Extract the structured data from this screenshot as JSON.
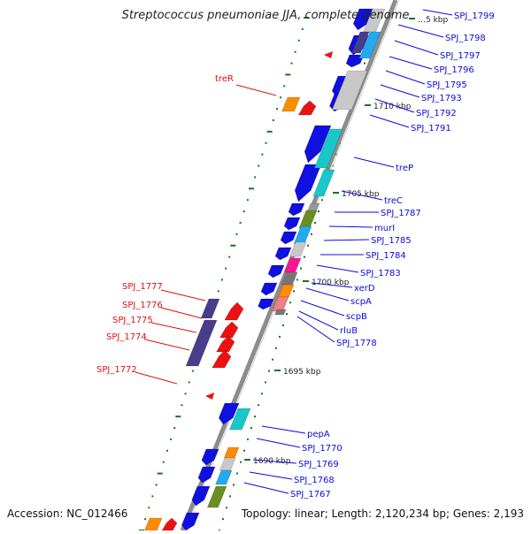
{
  "title": "Streptococcus pneumoniae JJA, complete genome",
  "footer": {
    "accession": "Accession: NC_012466",
    "summary": "Topology: linear; Length: 2,120,234 bp; Genes: 2,193"
  },
  "colors": {
    "backbone": "#8c8c8c",
    "forward_gene": "#1010e0",
    "reverse_gene": "#ee1111",
    "right_label": "#0a0ae0",
    "left_label": "#e01010",
    "tick": "#11771a",
    "cyan": "#18c8c8",
    "light_gray": "#c8c8c8",
    "olive": "#6b8e23",
    "sky": "#22aaee",
    "magenta": "#ff1493",
    "orange": "#ff8c00",
    "slate": "#483d8b",
    "salmon": "#f08080",
    "dark_gray": "#777777"
  },
  "kbp_labels": [
    {
      "text": "…5 kbp"
    },
    {
      "text": "1710 kbp"
    },
    {
      "text": "1705 kbp"
    },
    {
      "text": "1700 kbp"
    },
    {
      "text": "1695 kbp"
    },
    {
      "text": "1690 kbp"
    }
  ],
  "right_genes": [
    {
      "label": "SPJ_1799"
    },
    {
      "label": "SPJ_1798"
    },
    {
      "label": "SPJ_1797"
    },
    {
      "label": "SPJ_1796"
    },
    {
      "label": "SPJ_1795"
    },
    {
      "label": "SPJ_1793"
    },
    {
      "label": "SPJ_1792"
    },
    {
      "label": "SPJ_1791"
    },
    {
      "label": "treP"
    },
    {
      "label": "treC"
    },
    {
      "label": "SPJ_1787"
    },
    {
      "label": "murI"
    },
    {
      "label": "SPJ_1785"
    },
    {
      "label": "SPJ_1784"
    },
    {
      "label": "SPJ_1783"
    },
    {
      "label": "xerD"
    },
    {
      "label": "scpA"
    },
    {
      "label": "scpB"
    },
    {
      "label": "rluB"
    },
    {
      "label": "SPJ_1778"
    },
    {
      "label": "pepA"
    },
    {
      "label": "SPJ_1770"
    },
    {
      "label": "SPJ_1769"
    },
    {
      "label": "SPJ_1768"
    },
    {
      "label": "SPJ_1767"
    }
  ],
  "left_genes": [
    {
      "label": "treR"
    },
    {
      "label": "SPJ_1777"
    },
    {
      "label": "SPJ_1776"
    },
    {
      "label": "SPJ_1775"
    },
    {
      "label": "SPJ_1774"
    },
    {
      "label": "SPJ_1772"
    }
  ]
}
